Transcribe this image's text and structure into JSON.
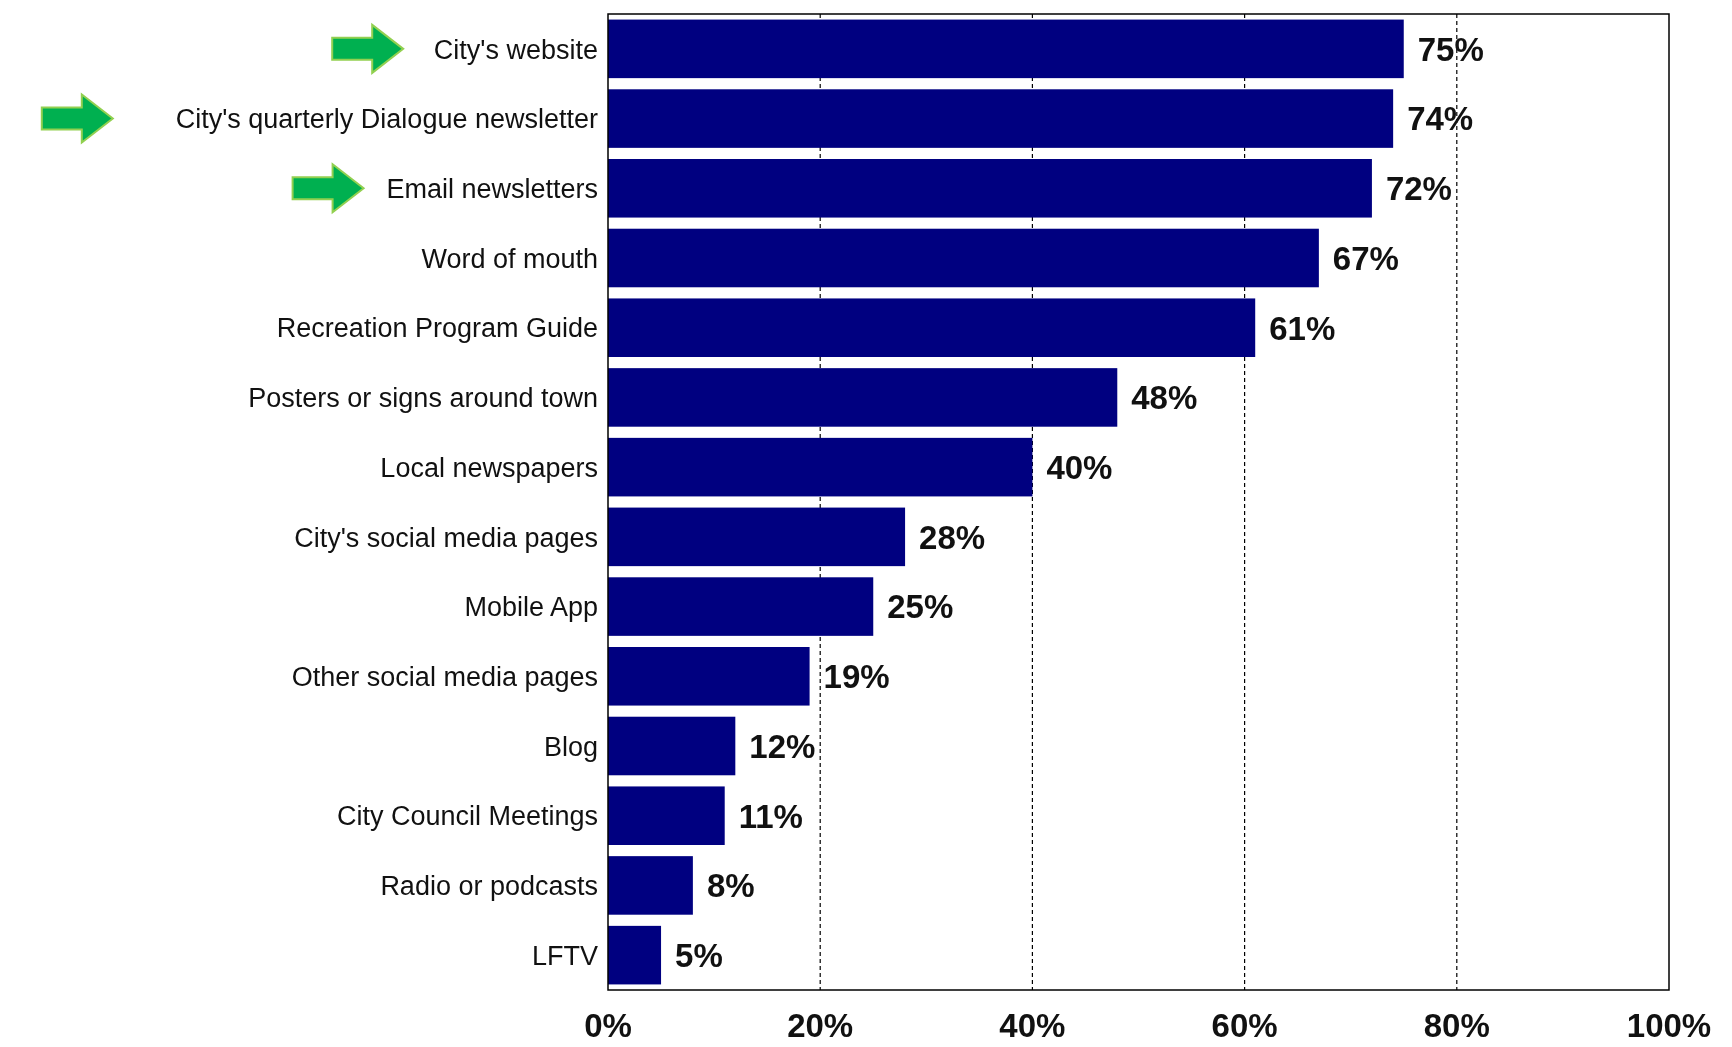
{
  "chart_data": {
    "type": "bar",
    "orientation": "horizontal",
    "categories": [
      "City's website",
      "City's quarterly Dialogue newsletter",
      "Email newsletters",
      "Word of mouth",
      "Recreation Program Guide",
      "Posters or signs around town",
      "Local newspapers",
      "City's social media pages",
      "Mobile App",
      "Other social media pages",
      "Blog",
      "City Council Meetings",
      "Radio or podcasts",
      "LFTV"
    ],
    "values": [
      75,
      74,
      72,
      67,
      61,
      48,
      40,
      28,
      25,
      19,
      12,
      11,
      8,
      5
    ],
    "value_labels": [
      "75%",
      "74%",
      "72%",
      "67%",
      "61%",
      "48%",
      "40%",
      "28%",
      "25%",
      "19%",
      "12%",
      "11%",
      "8%",
      "5%"
    ],
    "color": "#000080",
    "xlim": [
      0,
      100
    ],
    "xticks": [
      {
        "value": 0,
        "label": "0%"
      },
      {
        "value": 20,
        "label": "20%"
      },
      {
        "value": 40,
        "label": "40%"
      },
      {
        "value": 60,
        "label": "60%"
      },
      {
        "value": 80,
        "label": "80%"
      },
      {
        "value": 100,
        "label": "100%"
      }
    ],
    "grid": "x"
  }
}
